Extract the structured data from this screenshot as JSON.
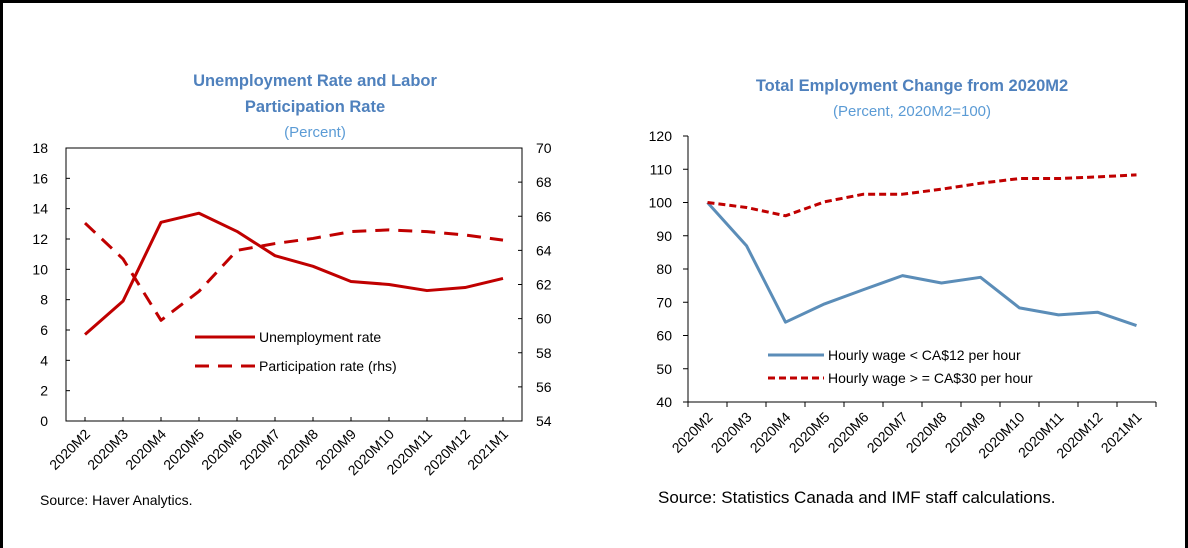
{
  "chart_data": [
    {
      "type": "line",
      "title_lines": [
        "Unemployment Rate and Labor",
        "Participation Rate"
      ],
      "subtitle": "(Percent)",
      "categories": [
        "2020M2",
        "2020M3",
        "2020M4",
        "2020M5",
        "2020M6",
        "2020M7",
        "2020M8",
        "2020M9",
        "2020M10",
        "2020M11",
        "2020M12",
        "2021M1"
      ],
      "y_left": {
        "range": [
          0,
          18
        ],
        "ticks": [
          "0",
          "2",
          "4",
          "6",
          "8",
          "10",
          "12",
          "14",
          "16",
          "18"
        ]
      },
      "y_right": {
        "range": [
          54,
          70
        ],
        "ticks": [
          "54",
          "56",
          "58",
          "60",
          "62",
          "64",
          "66",
          "68",
          "70"
        ]
      },
      "series": [
        {
          "name": "Unemployment rate",
          "axis": "left",
          "style": "solid",
          "color": "#C00000",
          "values": [
            5.7,
            7.9,
            13.1,
            13.7,
            12.5,
            10.9,
            10.2,
            9.2,
            9.0,
            8.6,
            8.8,
            9.4
          ]
        },
        {
          "name": "Participation rate (rhs)",
          "axis": "right",
          "style": "dashed",
          "color": "#C00000",
          "values": [
            65.6,
            63.5,
            59.9,
            61.6,
            64.0,
            64.4,
            64.7,
            65.1,
            65.2,
            65.1,
            64.9,
            64.6
          ]
        }
      ],
      "legend_position": "center-right",
      "grid": false,
      "source": "Source: Haver Analytics."
    },
    {
      "type": "line",
      "title": "Total Employment Change from 2020M2",
      "subtitle": "(Percent, 2020M2=100)",
      "categories": [
        "2020M2",
        "2020M3",
        "2020M4",
        "2020M5",
        "2020M6",
        "2020M7",
        "2020M8",
        "2020M9",
        "2020M10",
        "2020M11",
        "2020M12",
        "2021M1"
      ],
      "y": {
        "range": [
          40,
          120
        ],
        "ticks": [
          "40",
          "50",
          "60",
          "70",
          "80",
          "90",
          "100",
          "110",
          "120"
        ]
      },
      "series": [
        {
          "name": "Hourly wage < CA$12 per hour",
          "style": "solid",
          "color": "#5B8DB8",
          "values": [
            100,
            87,
            64,
            69.5,
            73.8,
            78,
            75.8,
            77.5,
            68.3,
            66.2,
            67,
            63
          ]
        },
        {
          "name": "Hourly wage > = CA$30 per hour",
          "style": "dashed",
          "color": "#C00000",
          "values": [
            100,
            98.5,
            96,
            100.2,
            102.5,
            102.5,
            104,
            105.8,
            107.2,
            107.2,
            107.7,
            108.3
          ]
        }
      ],
      "legend_position": "bottom-center",
      "grid": false,
      "source": "Source: Statistics Canada and IMF staff calculations."
    }
  ]
}
